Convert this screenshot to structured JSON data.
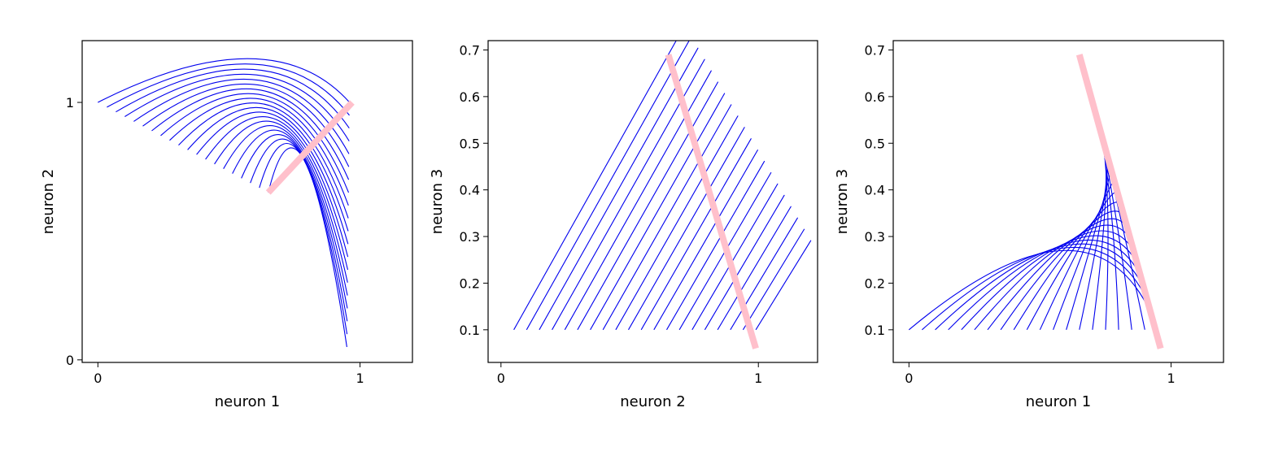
{
  "chart_data": [
    {
      "type": "line",
      "panel": "left",
      "xlabel": "neuron 1",
      "ylabel": "neuron 2",
      "xlim": [
        -0.06,
        1.2
      ],
      "ylim": [
        -0.01,
        1.24
      ],
      "xticks": [
        {
          "v": 0,
          "label": "0"
        },
        {
          "v": 1,
          "label": "1"
        }
      ],
      "yticks": [
        {
          "v": 0,
          "label": "0"
        },
        {
          "v": 1,
          "label": "1"
        }
      ],
      "grid": false,
      "line_color": "#0000ee",
      "highlight_color": "#ffc0cb",
      "highlight_segment": [
        [
          0.65,
          0.65
        ],
        [
          0.97,
          1.0
        ]
      ],
      "family": {
        "n": 20,
        "start_from": [
          0.0,
          1.0
        ],
        "start_to": [
          0.65,
          0.65
        ],
        "peak_from": [
          0.57,
          1.17
        ],
        "peak_to": [
          0.79,
          0.77
        ],
        "end_from": [
          0.96,
          1.0
        ],
        "end_to": [
          0.95,
          0.05
        ]
      }
    },
    {
      "type": "line",
      "panel": "middle",
      "xlabel": "neuron 2",
      "ylabel": "neuron 3",
      "xlim": [
        -0.05,
        1.23
      ],
      "ylim": [
        0.03,
        0.72
      ],
      "xticks": [
        {
          "v": 0,
          "label": "0"
        },
        {
          "v": 1,
          "label": "1"
        }
      ],
      "yticks": [
        {
          "v": 0.1,
          "label": "0.1"
        },
        {
          "v": 0.2,
          "label": "0.2"
        },
        {
          "v": 0.3,
          "label": "0.3"
        },
        {
          "v": 0.4,
          "label": "0.4"
        },
        {
          "v": 0.5,
          "label": "0.5"
        },
        {
          "v": 0.6,
          "label": "0.6"
        },
        {
          "v": 0.7,
          "label": "0.7"
        }
      ],
      "grid": false,
      "line_color": "#0000ee",
      "highlight_color": "#ffc0cb",
      "highlight_segment": [
        [
          0.65,
          0.69
        ],
        [
          0.99,
          0.06
        ]
      ],
      "family": {
        "n": 20,
        "start_from": [
          0.05,
          0.1
        ],
        "start_to": [
          0.99,
          0.1
        ],
        "peak_from": [
          0.64,
          0.68
        ],
        "peak_to": [
          1.18,
          0.27
        ],
        "end_from": [
          0.64,
          0.68
        ],
        "end_to": [
          1.18,
          0.27
        ]
      }
    },
    {
      "type": "line",
      "panel": "right",
      "xlabel": "neuron 1",
      "ylabel": "neuron 3",
      "xlim": [
        -0.06,
        1.2
      ],
      "ylim": [
        0.03,
        0.72
      ],
      "xticks": [
        {
          "v": 0,
          "label": "0"
        },
        {
          "v": 1,
          "label": "1"
        }
      ],
      "yticks": [
        {
          "v": 0.1,
          "label": "0.1"
        },
        {
          "v": 0.2,
          "label": "0.2"
        },
        {
          "v": 0.3,
          "label": "0.3"
        },
        {
          "v": 0.4,
          "label": "0.4"
        },
        {
          "v": 0.5,
          "label": "0.5"
        },
        {
          "v": 0.6,
          "label": "0.6"
        },
        {
          "v": 0.7,
          "label": "0.7"
        }
      ],
      "grid": false,
      "line_color": "#0000ee",
      "highlight_color": "#ffc0cb",
      "highlight_segment": [
        [
          0.65,
          0.69
        ],
        [
          0.96,
          0.06
        ]
      ],
      "family": {
        "n": 20,
        "start_from": [
          0.0,
          0.1
        ],
        "start_to": [
          0.95,
          0.1
        ],
        "peak_from": [
          0.6,
          0.27
        ],
        "peak_to": [
          0.8,
          0.39
        ],
        "end_from": [
          0.95,
          0.1
        ],
        "end_to": [
          0.67,
          0.66
        ]
      }
    }
  ]
}
